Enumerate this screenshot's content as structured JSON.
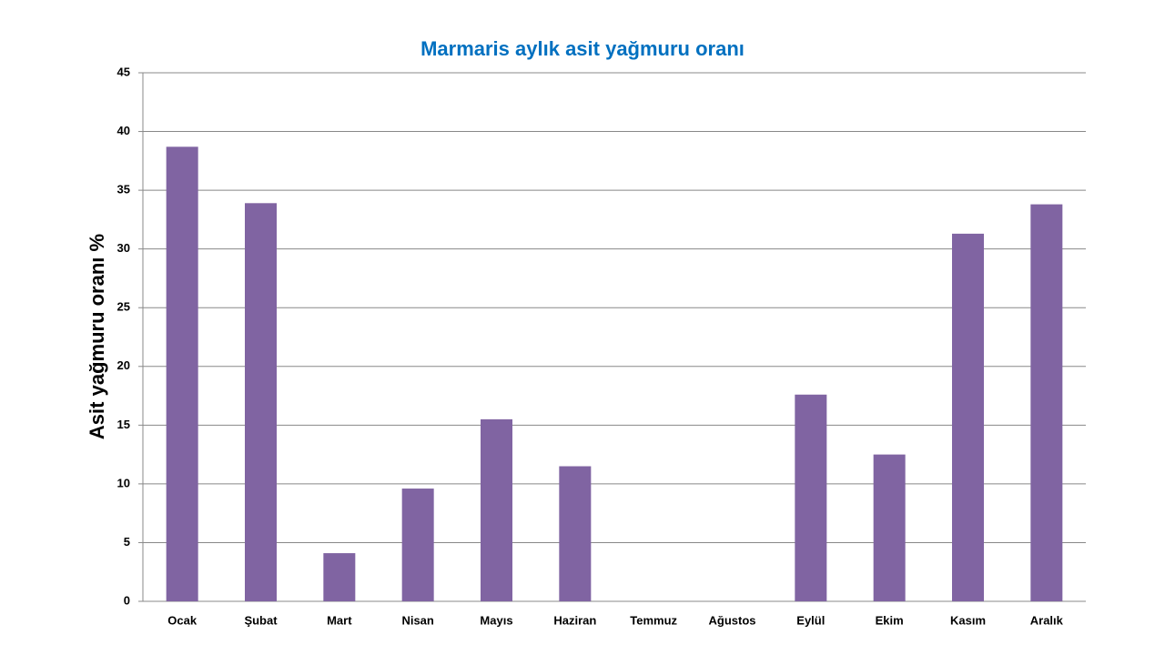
{
  "chart_data": {
    "type": "bar",
    "title": "Marmaris aylık asit yağmuru oranı",
    "y_label": "Asit yağmuru oranı %",
    "categories": [
      "Ocak",
      "Şubat",
      "Mart",
      "Nisan",
      "Mayıs",
      "Haziran",
      "Temmuz",
      "Ağustos",
      "Eylül",
      "Ekim",
      "Kasım",
      "Aralık"
    ],
    "values": [
      38.7,
      33.9,
      4.1,
      9.6,
      15.5,
      11.5,
      0,
      0,
      17.6,
      12.5,
      31.3,
      33.8
    ],
    "color": "#8064a2",
    "ylim": [
      0,
      45
    ],
    "yticks": [
      0,
      5,
      10,
      15,
      20,
      25,
      30,
      35,
      40,
      45
    ],
    "grid": true
  }
}
